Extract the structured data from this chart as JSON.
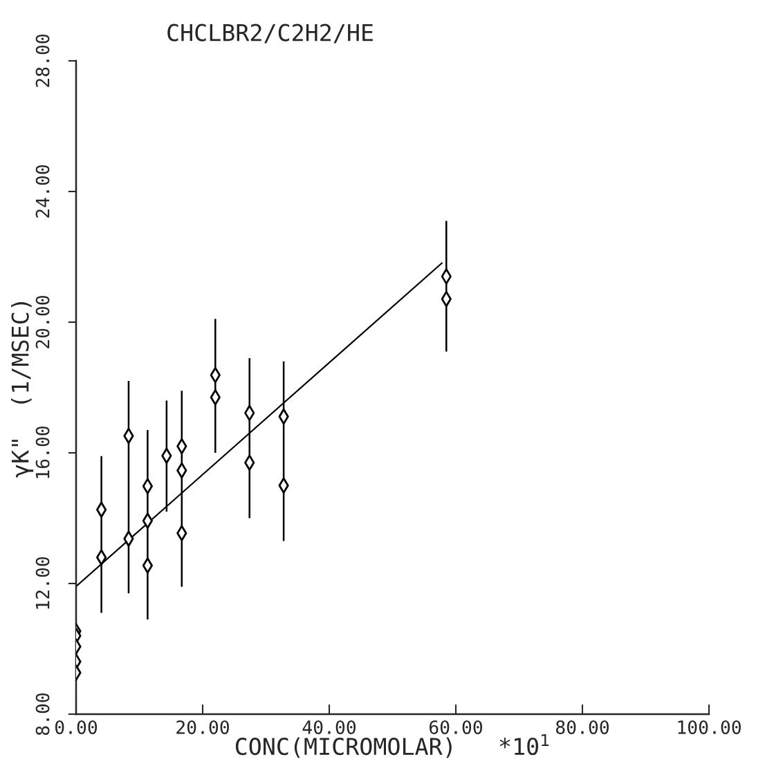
{
  "chart_data": {
    "type": "scatter",
    "title": "CHCLBR2/C2H2/HE",
    "xlabel": "CONC(MICROMOLAR)   *10$^{1}$",
    "ylabel": "γK\"  (1/MSEC)",
    "xlim": [
      0,
      100
    ],
    "ylim": [
      8,
      28
    ],
    "xticks": [
      {
        "value": 0,
        "label": "0.00"
      },
      {
        "value": 20,
        "label": "20.00"
      },
      {
        "value": 40,
        "label": "40.00"
      },
      {
        "value": 60,
        "label": "60.00"
      },
      {
        "value": 80,
        "label": "80.00"
      },
      {
        "value": 100,
        "label": "100.00"
      }
    ],
    "yticks": [
      {
        "value": 8,
        "label": "8.00"
      },
      {
        "value": 12,
        "label": "12.00"
      },
      {
        "value": 16,
        "label": "16.00"
      },
      {
        "value": 20,
        "label": "20.00"
      },
      {
        "value": 24,
        "label": "24.00"
      },
      {
        "value": 28,
        "label": "28.00"
      }
    ],
    "grid": false,
    "legend": false,
    "marker": "diamond",
    "series": [
      {
        "color": "#000000",
        "x": [
          0,
          0,
          0,
          0,
          0,
          4.0,
          4.0,
          8.3,
          8.3,
          11.3,
          11.3,
          11.3,
          14.3,
          16.7,
          16.7,
          16.7,
          22.0,
          22.0,
          27.4,
          27.4,
          32.8,
          32.8,
          58.5,
          58.5
        ],
        "values": [
          10.54,
          10.4,
          10.07,
          9.61,
          9.27,
          14.26,
          12.8,
          16.52,
          13.37,
          14.98,
          13.92,
          12.55,
          15.91,
          16.2,
          15.46,
          13.54,
          18.38,
          17.7,
          17.22,
          15.7,
          17.11,
          15.0,
          21.4,
          20.71
        ],
        "errors": [
          null,
          null,
          null,
          null,
          null,
          [
            11.1,
            15.9
          ],
          null,
          [
            11.7,
            18.2
          ],
          null,
          [
            10.9,
            16.7
          ],
          null,
          null,
          [
            14.2,
            17.6
          ],
          [
            11.9,
            17.9
          ],
          null,
          null,
          [
            16.0,
            20.1
          ],
          null,
          [
            14.0,
            18.9
          ],
          null,
          [
            13.3,
            18.8
          ],
          null,
          [
            19.1,
            23.1
          ],
          null
        ]
      },
      {
        "type": "line",
        "color": "#000000",
        "x": [
          0,
          57.8
        ],
        "values": [
          11.91,
          21.81
        ],
        "marker": "none"
      }
    ]
  }
}
